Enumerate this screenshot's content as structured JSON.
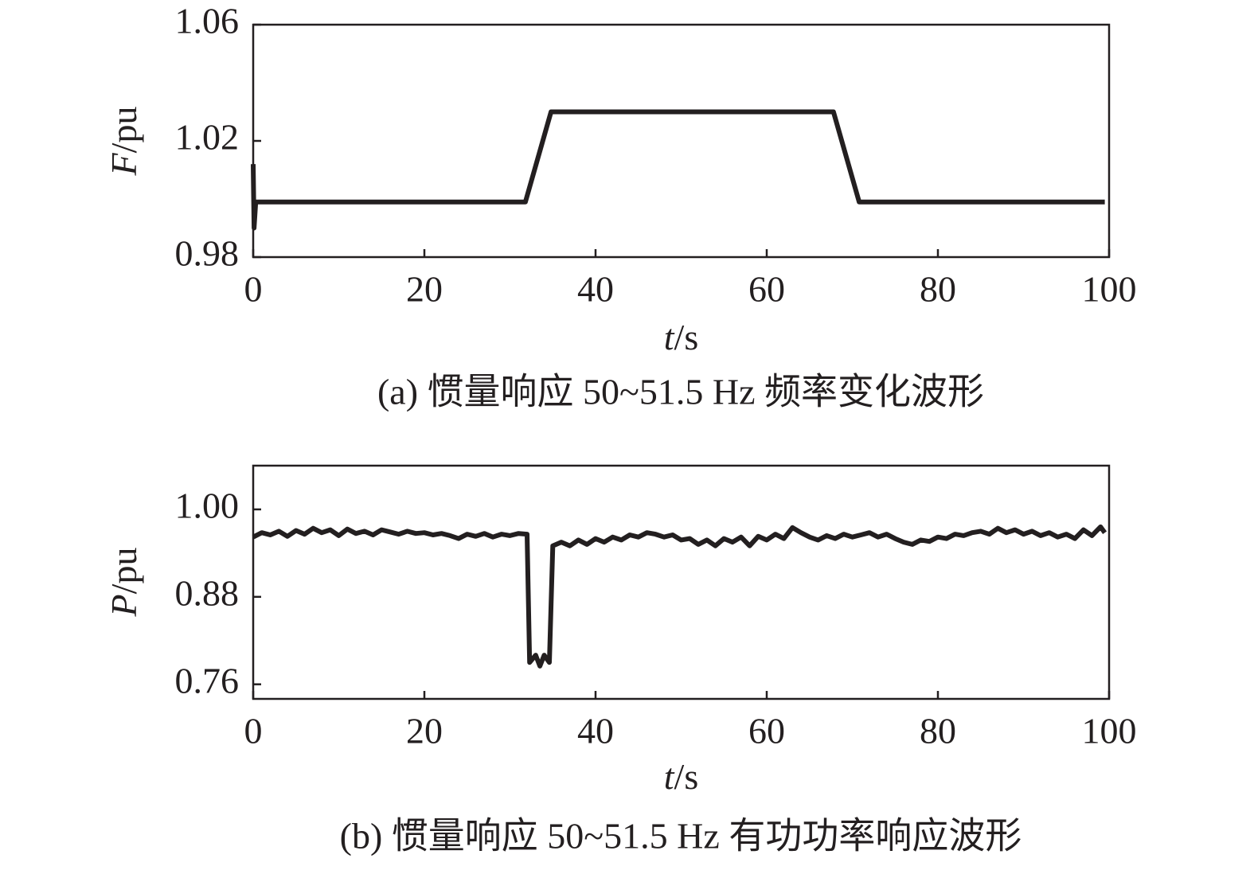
{
  "chart_data": [
    {
      "type": "line",
      "color": "#231f20",
      "ylabel_symbol": "F",
      "ylabel_unit": "/pu",
      "xlabel_symbol": "t",
      "xlabel_unit": "/s",
      "caption": "(a) 惯量响应 50~51.5 Hz 频率变化波形",
      "xlim": [
        0,
        100
      ],
      "xticks": [
        0,
        20,
        40,
        60,
        80,
        100
      ],
      "ylim": [
        0.98,
        1.06
      ],
      "yticks": [
        1.06,
        1.02,
        0.98
      ],
      "x": [
        0,
        0.1,
        0.3,
        31.8,
        34.8,
        67.8,
        70.8,
        99.5
      ],
      "values": [
        1.012,
        0.99,
        0.999,
        0.999,
        1.03,
        1.03,
        0.999,
        0.999
      ]
    },
    {
      "type": "line",
      "color": "#231f20",
      "ylabel_symbol": "P",
      "ylabel_unit": "/pu",
      "xlabel_symbol": "t",
      "xlabel_unit": "/s",
      "caption": "(b) 惯量响应 50~51.5 Hz 有功功率响应波形",
      "xlim": [
        0,
        100
      ],
      "xticks": [
        0,
        20,
        40,
        60,
        80,
        100
      ],
      "ylim": [
        0.74,
        1.06
      ],
      "yticks": [
        {
          "value": 1,
          "label": "1.00"
        },
        0.88,
        0.76
      ],
      "x": [
        0,
        1,
        2,
        3,
        4,
        5,
        6,
        7,
        8,
        9,
        10,
        11,
        12,
        13,
        14,
        15,
        16,
        17,
        18,
        19,
        20,
        21,
        22,
        23,
        24,
        25,
        26,
        27,
        28,
        29,
        30,
        31,
        32,
        32.3,
        33,
        33.5,
        34,
        34.6,
        35,
        36,
        37,
        38,
        39,
        40,
        41,
        42,
        43,
        44,
        45,
        46,
        47,
        48,
        49,
        50,
        51,
        52,
        53,
        54,
        55,
        56,
        57,
        58,
        59,
        60,
        61,
        62,
        63,
        64,
        65,
        66,
        67,
        68,
        69,
        70,
        71,
        72,
        73,
        74,
        75,
        76,
        77,
        78,
        79,
        80,
        81,
        82,
        83,
        84,
        85,
        86,
        87,
        88,
        89,
        90,
        91,
        92,
        93,
        94,
        95,
        96,
        97,
        98,
        99,
        99.5
      ],
      "values": [
        0.962,
        0.968,
        0.965,
        0.97,
        0.963,
        0.971,
        0.966,
        0.974,
        0.968,
        0.972,
        0.964,
        0.973,
        0.967,
        0.97,
        0.965,
        0.972,
        0.969,
        0.966,
        0.97,
        0.967,
        0.968,
        0.965,
        0.967,
        0.964,
        0.96,
        0.966,
        0.963,
        0.967,
        0.962,
        0.966,
        0.964,
        0.967,
        0.966,
        0.79,
        0.8,
        0.785,
        0.8,
        0.79,
        0.95,
        0.955,
        0.95,
        0.958,
        0.952,
        0.96,
        0.955,
        0.962,
        0.958,
        0.965,
        0.962,
        0.968,
        0.966,
        0.962,
        0.965,
        0.958,
        0.96,
        0.952,
        0.958,
        0.95,
        0.96,
        0.955,
        0.962,
        0.95,
        0.963,
        0.958,
        0.966,
        0.96,
        0.975,
        0.968,
        0.962,
        0.958,
        0.964,
        0.96,
        0.966,
        0.962,
        0.965,
        0.968,
        0.962,
        0.966,
        0.96,
        0.955,
        0.952,
        0.958,
        0.956,
        0.962,
        0.96,
        0.966,
        0.964,
        0.968,
        0.97,
        0.966,
        0.974,
        0.968,
        0.972,
        0.966,
        0.97,
        0.964,
        0.968,
        0.962,
        0.966,
        0.96,
        0.972,
        0.964,
        0.976,
        0.968
      ]
    }
  ]
}
